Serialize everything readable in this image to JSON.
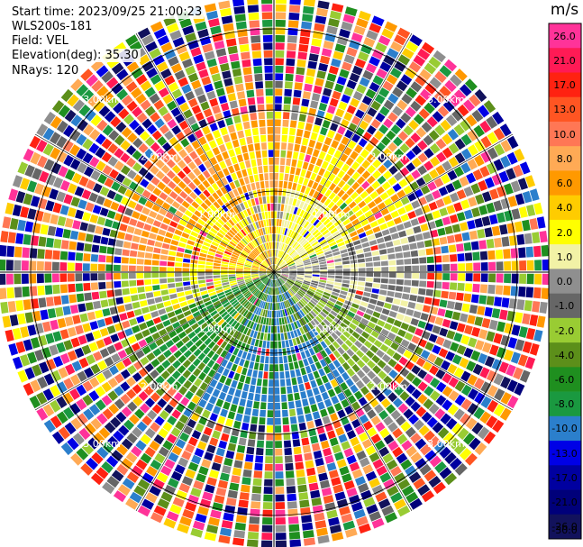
{
  "header": {
    "start_time": "Start time: 2023/09/25 21:00:23",
    "instrument": "WLS200s-181",
    "field": "Field: VEL",
    "elevation": "Elevation(deg): 35.30",
    "nrays": "NRays: 120"
  },
  "chart_data": {
    "type": "polar-ppi",
    "field": "VEL",
    "units": "m/s",
    "ring_labels": [
      "1.00km",
      "2.00km",
      "3.00km"
    ],
    "range_rings_km": [
      1,
      2,
      3
    ],
    "max_range_km": 3.4,
    "nrays": 120,
    "colorbar": {
      "ticks": [
        "26.0",
        "21.0",
        "17.0",
        "13.0",
        "10.0",
        "8.0",
        "6.0",
        "4.0",
        "2.0",
        "1.0",
        "0.0",
        "-1.0",
        "-2.0",
        "-4.0",
        "-6.0",
        "-8.0",
        "-10.0",
        "-13.0",
        "-17.0",
        "-21.0",
        "-26.0",
        "-30.0"
      ],
      "colors": [
        "#ff3399",
        "#ff1a55",
        "#ff2211",
        "#ff5522",
        "#ff7755",
        "#ffaa55",
        "#ff9900",
        "#ffcc00",
        "#ffff00",
        "#f2f2a6",
        "#8f8f8f",
        "#666666",
        "#99cc33",
        "#5c8f1a",
        "#1f8f1f",
        "#1a9940",
        "#2b7fcc",
        "#0000e6",
        "#0000a0",
        "#00007a",
        "#12125c"
      ]
    }
  }
}
